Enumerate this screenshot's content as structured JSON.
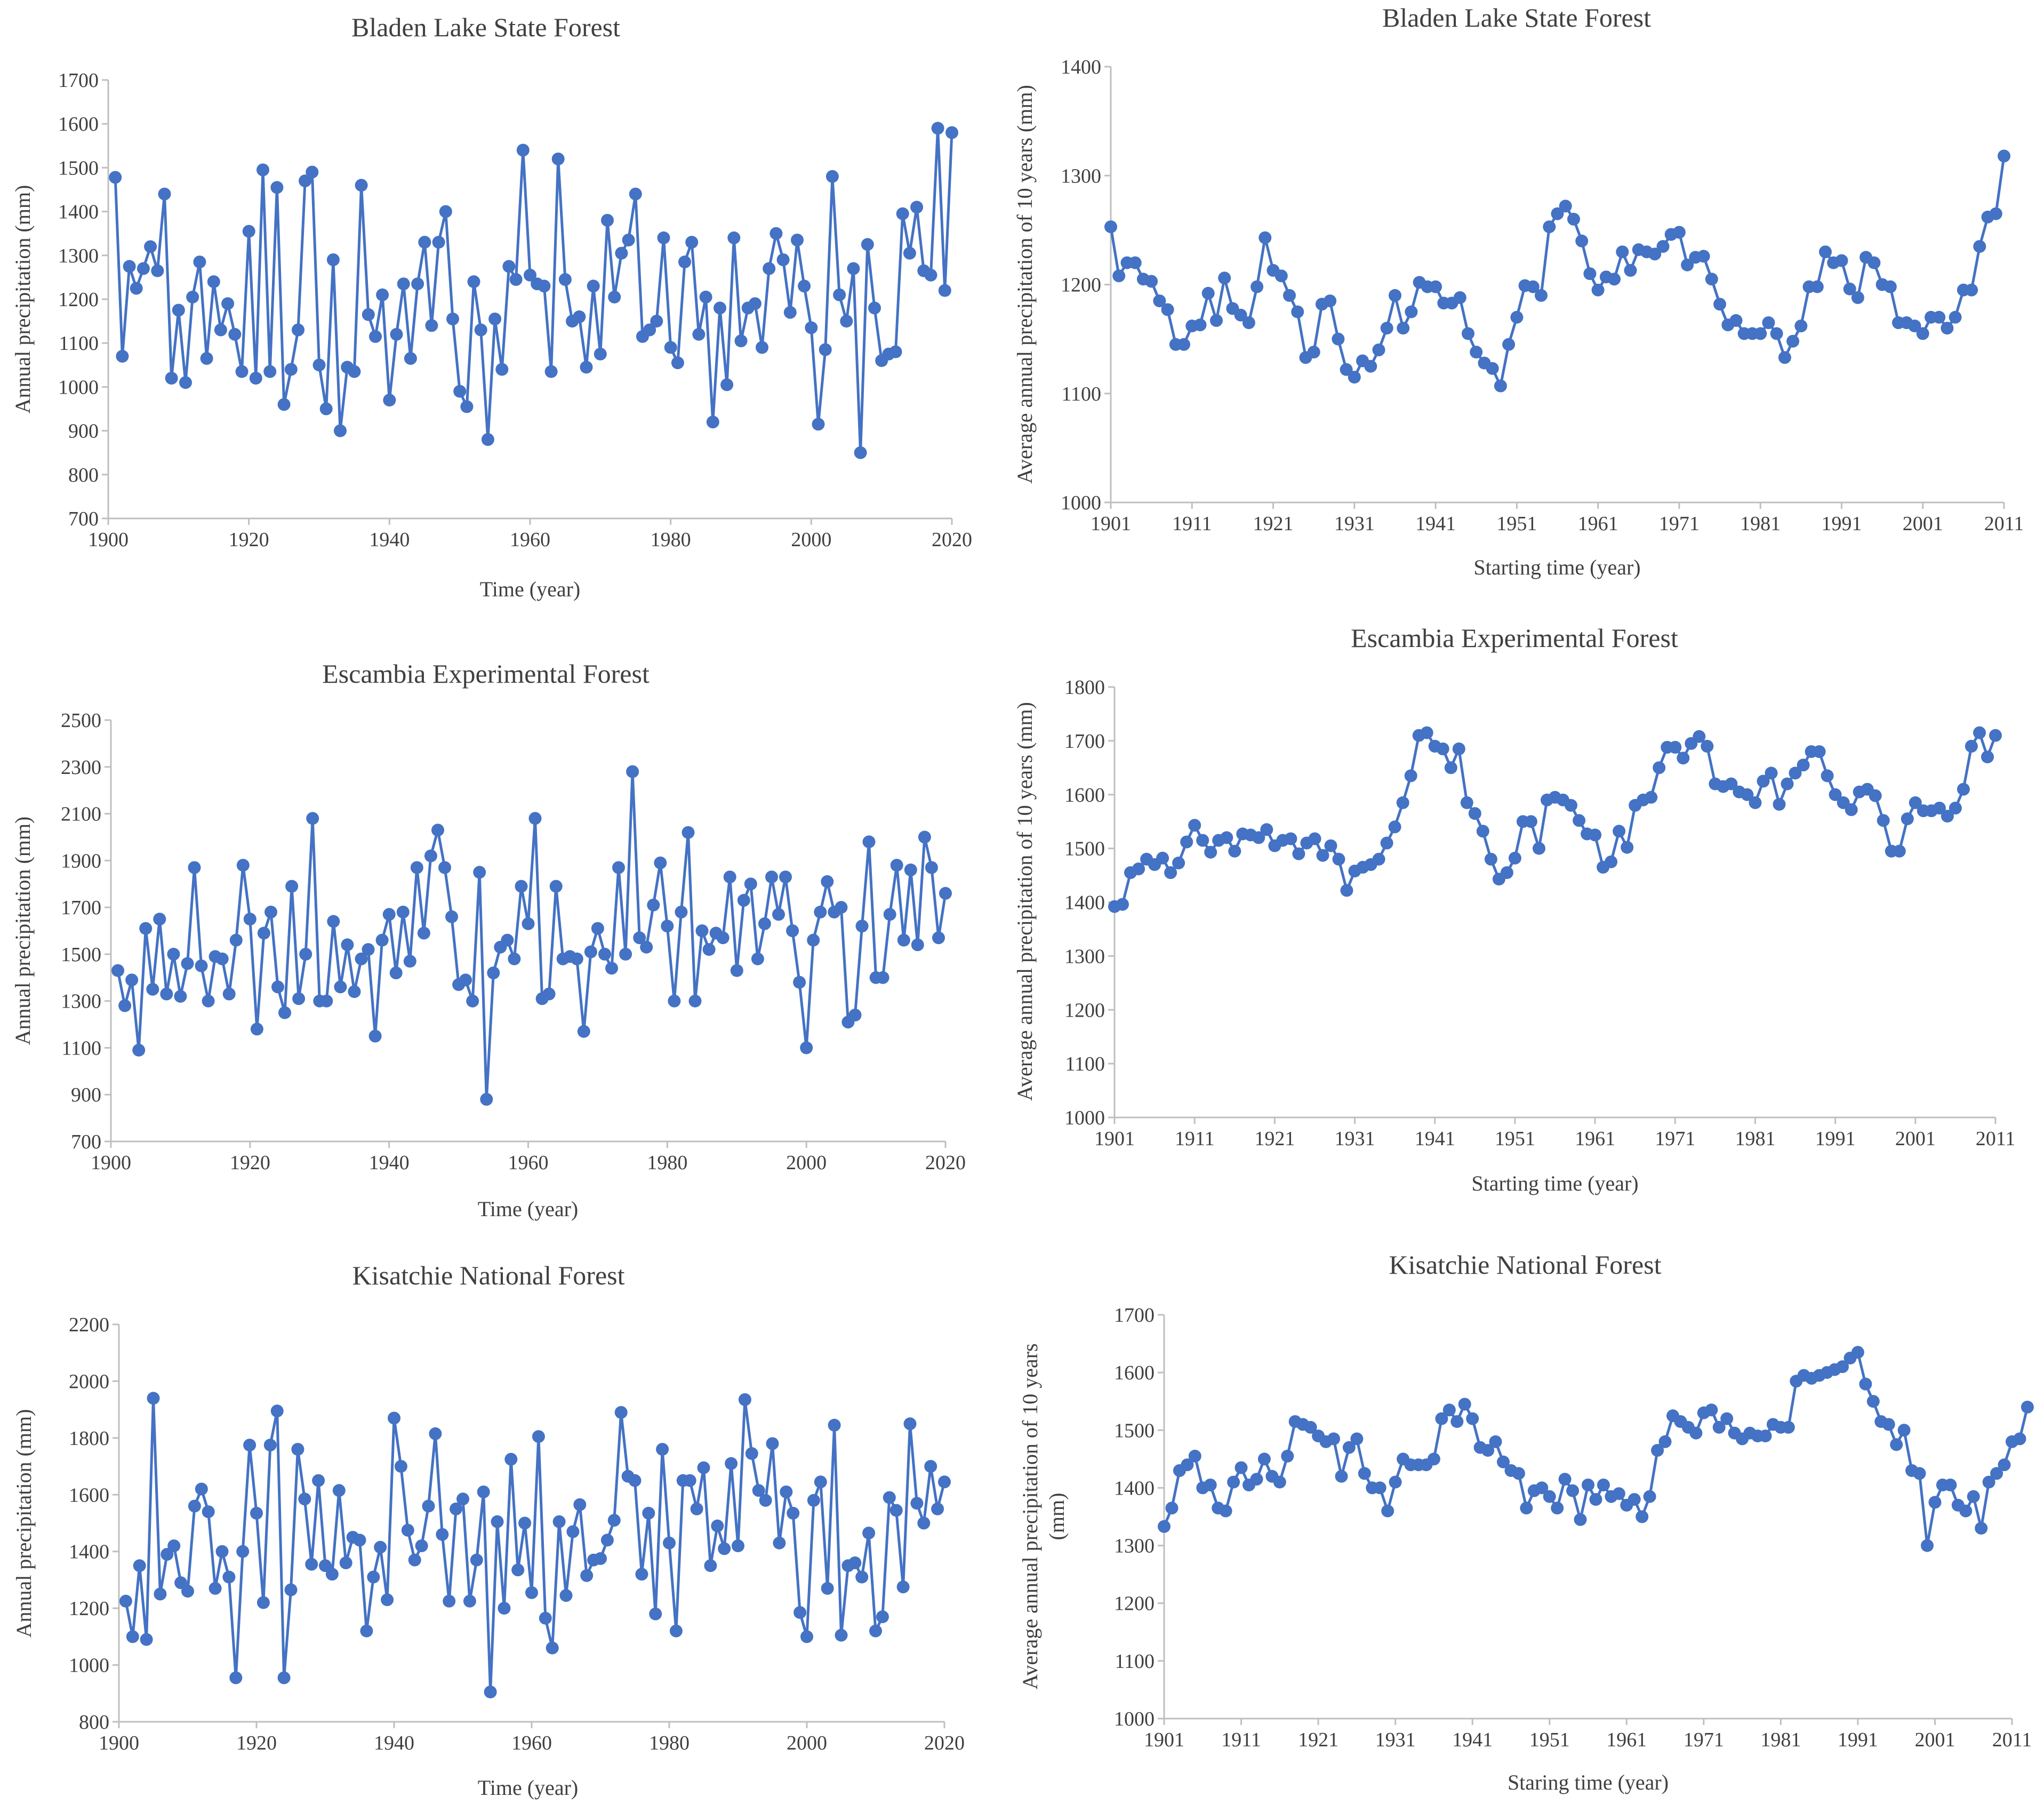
{
  "colors": {
    "series": "#4472C4",
    "axis": "#bfbfbf",
    "text": "#404040"
  },
  "chart_data": [
    {
      "id": "bladen-annual",
      "type": "line",
      "title": "Bladen Lake State Forest",
      "xlabel": "Time (year)",
      "ylabel": "Annual precipitation (mm)",
      "xlim": [
        1900,
        2020
      ],
      "ylim": [
        700,
        1700
      ],
      "xticks": [
        1900,
        1920,
        1940,
        1960,
        1980,
        2000,
        2020
      ],
      "yticks": [
        700,
        800,
        900,
        1000,
        1100,
        1200,
        1300,
        1400,
        1500,
        1600,
        1700
      ],
      "x_start": 1901,
      "values": [
        1478,
        1070,
        1275,
        1225,
        1270,
        1320,
        1265,
        1440,
        1020,
        1175,
        1010,
        1205,
        1285,
        1065,
        1240,
        1130,
        1190,
        1120,
        1035,
        1355,
        1020,
        1495,
        1035,
        1455,
        960,
        1040,
        1130,
        1470,
        1490,
        1050,
        950,
        1290,
        900,
        1045,
        1035,
        1460,
        1165,
        1115,
        1210,
        970,
        1120,
        1235,
        1065,
        1235,
        1330,
        1140,
        1330,
        1400,
        1155,
        990,
        955,
        1240,
        1130,
        880,
        1155,
        1040,
        1275,
        1245,
        1540,
        1255,
        1235,
        1230,
        1035,
        1520,
        1245,
        1150,
        1160,
        1045,
        1230,
        1075,
        1380,
        1205,
        1305,
        1335,
        1440,
        1115,
        1130,
        1150,
        1340,
        1090,
        1055,
        1285,
        1330,
        1120,
        1205,
        920,
        1180,
        1005,
        1340,
        1105,
        1180,
        1190,
        1090,
        1270,
        1350,
        1290,
        1170,
        1335,
        1230,
        1135,
        915,
        1085,
        1480,
        1210,
        1150,
        1270,
        850,
        1325,
        1180,
        1060,
        1075,
        1080,
        1395,
        1305,
        1410,
        1265,
        1255,
        1590,
        1220,
        1580
      ]
    },
    {
      "id": "bladen-10yr",
      "type": "line",
      "title": "Bladen Lake State Forest",
      "xlabel": "Starting time (year)",
      "ylabel": "Average  annual precipitation of 10 years (mm)",
      "xlim": [
        1901,
        2011
      ],
      "ylim": [
        1000,
        1400
      ],
      "xticks": [
        1901,
        1911,
        1921,
        1931,
        1941,
        1951,
        1961,
        1971,
        1981,
        1991,
        2001,
        2011
      ],
      "yticks": [
        1000,
        1100,
        1200,
        1300,
        1400
      ],
      "x_start": 1901,
      "values": [
        1253,
        1208,
        1220,
        1220,
        1205,
        1203,
        1185,
        1177,
        1145,
        1145,
        1162,
        1163,
        1192,
        1167,
        1206,
        1178,
        1172,
        1165,
        1198,
        1243,
        1213,
        1208,
        1190,
        1175,
        1133,
        1138,
        1182,
        1185,
        1150,
        1122,
        1115,
        1130,
        1125,
        1140,
        1160,
        1190,
        1160,
        1175,
        1202,
        1198,
        1198,
        1183,
        1183,
        1188,
        1155,
        1138,
        1128,
        1123,
        1107,
        1145,
        1170,
        1199,
        1198,
        1190,
        1253,
        1265,
        1272,
        1260,
        1240,
        1210,
        1195,
        1207,
        1205,
        1230,
        1213,
        1232,
        1230,
        1228,
        1235,
        1246,
        1248,
        1218,
        1225,
        1226,
        1205,
        1182,
        1163,
        1167,
        1155,
        1155,
        1155,
        1165,
        1155,
        1133,
        1148,
        1162,
        1198,
        1198,
        1230,
        1220,
        1222,
        1196,
        1188,
        1225,
        1220,
        1200,
        1198,
        1165,
        1165,
        1162,
        1155,
        1170,
        1170,
        1160,
        1170,
        1195,
        1195,
        1235,
        1262,
        1265,
        1318
      ]
    },
    {
      "id": "escambia-annual",
      "type": "line",
      "title": "Escambia Experimental Forest",
      "xlabel": "Time (year)",
      "ylabel": "Annual precipitation (mm)",
      "xlim": [
        1900,
        2020
      ],
      "ylim": [
        700,
        2500
      ],
      "xticks": [
        1900,
        1920,
        1940,
        1960,
        1980,
        2000,
        2020
      ],
      "yticks": [
        700,
        900,
        1100,
        1300,
        1500,
        1700,
        1900,
        2100,
        2300,
        2500
      ],
      "x_start": 1901,
      "values": [
        1430,
        1280,
        1390,
        1090,
        1610,
        1350,
        1650,
        1330,
        1500,
        1320,
        1460,
        1870,
        1450,
        1300,
        1490,
        1480,
        1330,
        1560,
        1880,
        1650,
        1180,
        1590,
        1680,
        1360,
        1250,
        1790,
        1310,
        1500,
        2080,
        1300,
        1300,
        1640,
        1360,
        1540,
        1340,
        1480,
        1520,
        1150,
        1560,
        1670,
        1420,
        1680,
        1470,
        1870,
        1590,
        1920,
        2030,
        1870,
        1660,
        1370,
        1390,
        1300,
        1850,
        880,
        1420,
        1530,
        1560,
        1480,
        1790,
        1630,
        2080,
        1310,
        1330,
        1790,
        1480,
        1490,
        1480,
        1170,
        1510,
        1610,
        1500,
        1440,
        1870,
        1500,
        2280,
        1570,
        1530,
        1710,
        1890,
        1620,
        1300,
        1680,
        2020,
        1300,
        1600,
        1520,
        1590,
        1570,
        1830,
        1430,
        1730,
        1800,
        1480,
        1630,
        1830,
        1670,
        1830,
        1600,
        1380,
        1100,
        1560,
        1680,
        1810,
        1680,
        1700,
        1210,
        1240,
        1620,
        1980,
        1400,
        1400,
        1670,
        1880,
        1560,
        1860,
        1540,
        2000,
        1870,
        1570,
        1760
      ]
    },
    {
      "id": "escambia-10yr",
      "type": "line",
      "title": "Escambia Experimental Forest",
      "xlabel": "Starting time (year)",
      "ylabel": "Average  annual precipitation of 10 years (mm)",
      "xlim": [
        1901,
        2011
      ],
      "ylim": [
        1000,
        1800
      ],
      "xticks": [
        1901,
        1911,
        1921,
        1931,
        1941,
        1951,
        1961,
        1971,
        1981,
        1991,
        2001,
        2011
      ],
      "yticks": [
        1000,
        1100,
        1200,
        1300,
        1400,
        1500,
        1600,
        1700,
        1800
      ],
      "x_start": 1901,
      "values": [
        1392,
        1396,
        1455,
        1462,
        1480,
        1470,
        1482,
        1455,
        1473,
        1512,
        1543,
        1515,
        1493,
        1515,
        1520,
        1495,
        1527,
        1525,
        1520,
        1535,
        1505,
        1515,
        1518,
        1490,
        1510,
        1518,
        1487,
        1505,
        1480,
        1422,
        1458,
        1465,
        1470,
        1480,
        1510,
        1540,
        1585,
        1635,
        1710,
        1715,
        1690,
        1685,
        1650,
        1685,
        1585,
        1565,
        1532,
        1480,
        1443,
        1455,
        1482,
        1550,
        1550,
        1500,
        1590,
        1595,
        1590,
        1580,
        1552,
        1527,
        1525,
        1465,
        1475,
        1532,
        1502,
        1580,
        1590,
        1595,
        1650,
        1688,
        1688,
        1668,
        1695,
        1708,
        1690,
        1620,
        1615,
        1620,
        1605,
        1600,
        1585,
        1625,
        1640,
        1582,
        1620,
        1640,
        1655,
        1680,
        1680,
        1635,
        1600,
        1585,
        1572,
        1605,
        1610,
        1598,
        1552,
        1495,
        1495,
        1555,
        1585,
        1570,
        1570,
        1575,
        1560,
        1575,
        1610,
        1690,
        1715,
        1670,
        1710
      ]
    },
    {
      "id": "kisatchie-annual",
      "type": "line",
      "title": "Kisatchie National Forest",
      "xlabel": "Time (year)",
      "ylabel": "Annual precipitation (mm)",
      "xlim": [
        1900,
        2020
      ],
      "ylim": [
        800,
        2200
      ],
      "xticks": [
        1900,
        1920,
        1940,
        1960,
        1980,
        2000,
        2020
      ],
      "yticks": [
        800,
        1000,
        1200,
        1400,
        1600,
        1800,
        2000,
        2200
      ],
      "x_start": 1901,
      "values": [
        1225,
        1100,
        1350,
        1090,
        1940,
        1250,
        1390,
        1420,
        1290,
        1260,
        1560,
        1620,
        1540,
        1270,
        1400,
        1310,
        955,
        1400,
        1775,
        1535,
        1220,
        1775,
        1895,
        955,
        1265,
        1760,
        1585,
        1355,
        1650,
        1350,
        1320,
        1615,
        1360,
        1450,
        1440,
        1120,
        1310,
        1415,
        1230,
        1870,
        1700,
        1475,
        1370,
        1420,
        1560,
        1815,
        1460,
        1225,
        1550,
        1585,
        1225,
        1370,
        1610,
        905,
        1505,
        1200,
        1725,
        1335,
        1500,
        1255,
        1805,
        1165,
        1060,
        1505,
        1245,
        1470,
        1565,
        1315,
        1370,
        1375,
        1440,
        1510,
        1890,
        1665,
        1650,
        1320,
        1535,
        1180,
        1760,
        1430,
        1120,
        1650,
        1650,
        1550,
        1695,
        1350,
        1490,
        1410,
        1710,
        1420,
        1935,
        1745,
        1615,
        1580,
        1780,
        1430,
        1610,
        1535,
        1185,
        1100,
        1580,
        1645,
        1270,
        1845,
        1105,
        1350,
        1360,
        1310,
        1465,
        1120,
        1170,
        1590,
        1545,
        1275,
        1850,
        1570,
        1500,
        1700,
        1550,
        1645
      ]
    },
    {
      "id": "kisatchie-10yr",
      "type": "line",
      "title": "Kisatchie National Forest",
      "xlabel": "Staring time (year)",
      "ylabel": "Average  annual precipitation of 10 years (mm)",
      "xlim": [
        1901,
        2011
      ],
      "ylim": [
        1000,
        1700
      ],
      "xticks": [
        1901,
        1911,
        1921,
        1931,
        1941,
        1951,
        1961,
        1971,
        1981,
        1991,
        2001,
        2011
      ],
      "yticks": [
        1000,
        1100,
        1200,
        1300,
        1400,
        1500,
        1600,
        1700
      ],
      "x_start": 1901,
      "values": [
        1333,
        1365,
        1430,
        1440,
        1455,
        1400,
        1405,
        1365,
        1360,
        1410,
        1435,
        1405,
        1415,
        1450,
        1420,
        1410,
        1455,
        1515,
        1510,
        1505,
        1490,
        1480,
        1485,
        1420,
        1470,
        1485,
        1425,
        1400,
        1400,
        1360,
        1410,
        1450,
        1440,
        1440,
        1440,
        1450,
        1520,
        1535,
        1515,
        1545,
        1520,
        1470,
        1465,
        1480,
        1445,
        1430,
        1425,
        1365,
        1395,
        1400,
        1385,
        1365,
        1415,
        1395,
        1345,
        1405,
        1380,
        1405,
        1385,
        1390,
        1370,
        1380,
        1350,
        1385,
        1465,
        1480,
        1525,
        1515,
        1505,
        1495,
        1530,
        1535,
        1505,
        1520,
        1495,
        1485,
        1495,
        1490,
        1490,
        1510,
        1505,
        1505,
        1585,
        1595,
        1590,
        1595,
        1600,
        1605,
        1610,
        1625,
        1635,
        1580,
        1550,
        1515,
        1510,
        1475,
        1500,
        1430,
        1425,
        1300,
        1375,
        1405,
        1405,
        1370,
        1360,
        1385,
        1330,
        1410,
        1425,
        1440,
        1480,
        1485,
        1540
      ]
    }
  ]
}
